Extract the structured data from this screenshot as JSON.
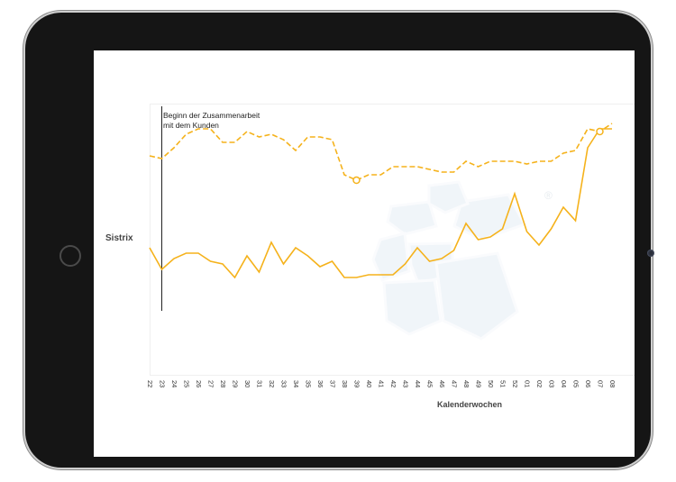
{
  "chart_data": {
    "type": "line",
    "title": "",
    "ylabel": "Sistrix",
    "xlabel": "Kalenderwochen",
    "ylim": [
      0,
      100
    ],
    "annotation": [
      "Beginn der Zusammenarbeit",
      "mit dem Kunden"
    ],
    "annotation_at": "23",
    "categories": [
      "22",
      "23",
      "24",
      "25",
      "26",
      "27",
      "28",
      "29",
      "30",
      "31",
      "32",
      "33",
      "34",
      "35",
      "36",
      "37",
      "38",
      "39",
      "40",
      "41",
      "42",
      "43",
      "44",
      "45",
      "46",
      "47",
      "48",
      "49",
      "50",
      "51",
      "52",
      "01",
      "02",
      "03",
      "04",
      "05",
      "06",
      "07",
      "08"
    ],
    "series": [
      {
        "name": "dashed",
        "style": "dashed",
        "color": "#f5b21b",
        "values": [
          81,
          80,
          84,
          89,
          91,
          91,
          86,
          86,
          90,
          88,
          89,
          87,
          83,
          88,
          88,
          87,
          74,
          72,
          74,
          74,
          77,
          77,
          77,
          76,
          75,
          75,
          79,
          77,
          79,
          79,
          79,
          78,
          79,
          79,
          82,
          83,
          91,
          90,
          93
        ],
        "markers": [
          {
            "index": 17,
            "value": 72
          },
          {
            "index": 37,
            "value": 90
          }
        ]
      },
      {
        "name": "solid",
        "style": "solid",
        "color": "#f5b21b",
        "values": [
          47,
          39,
          43,
          45,
          45,
          42,
          41,
          36,
          44,
          38,
          49,
          41,
          47,
          44,
          40,
          42,
          36,
          36,
          37,
          37,
          37,
          41,
          47,
          42,
          43,
          46,
          56,
          50,
          51,
          54,
          67,
          53,
          48,
          54,
          62,
          57,
          84,
          91,
          91
        ]
      }
    ],
    "watermark": "®"
  }
}
